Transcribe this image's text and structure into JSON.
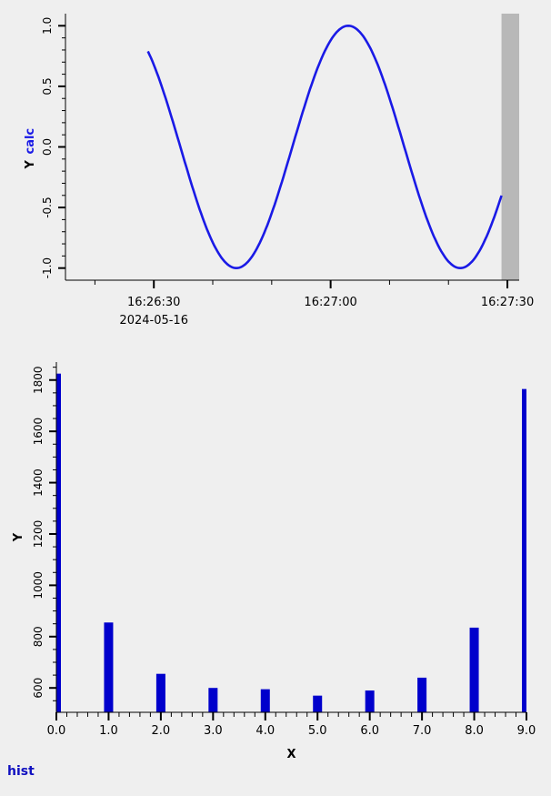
{
  "chart_data": [
    {
      "type": "line",
      "ylabel": "Y",
      "series": [
        {
          "name": "calc",
          "color": "#1a1ae6",
          "waveform": "sine",
          "amplitude": 1.0,
          "period_seconds": 38,
          "x_start": "16:26:29",
          "x_end": "16:27:29",
          "y_start": 0.9,
          "y_end": -0.1,
          "first_minimum": {
            "x": "16:26:44",
            "y": -1.0
          },
          "maximum": {
            "x": "16:27:03",
            "y": 1.0
          },
          "second_minimum": {
            "x": "16:27:22",
            "y": -1.0
          }
        }
      ],
      "xlim": [
        "16:26:15",
        "16:27:32"
      ],
      "ylim": [
        -1.1,
        1.1
      ],
      "x_ticks": [
        "16:26:30",
        "16:27:00",
        "16:27:30"
      ],
      "x_date_label": "2024-05-16",
      "y_ticks": [
        "1.0",
        "0.5",
        "0.0",
        "-0.5",
        "-1.0"
      ],
      "shaded_region": {
        "from": "16:27:29",
        "to": "16:27:34",
        "color": "#b8b8b8"
      },
      "legend": "ylabel",
      "grid": false
    },
    {
      "type": "bar",
      "xlabel": "X",
      "ylabel": "Y",
      "x": [
        0,
        1,
        2,
        3,
        4,
        5,
        6,
        7,
        8,
        9
      ],
      "values": [
        1825,
        855,
        655,
        600,
        595,
        570,
        590,
        640,
        835,
        1765
      ],
      "xlim": [
        0,
        9
      ],
      "ylim": [
        505,
        1870
      ],
      "x_ticks": [
        "0.0",
        "1.0",
        "2.0",
        "3.0",
        "4.0",
        "5.0",
        "6.0",
        "7.0",
        "8.0",
        "9.0"
      ],
      "y_ticks": [
        "600",
        "800",
        "1000",
        "1200",
        "1400",
        "1600",
        "1800"
      ],
      "bar_color": "#0000cc",
      "grid": false
    }
  ],
  "footer": {
    "label": "hist"
  }
}
